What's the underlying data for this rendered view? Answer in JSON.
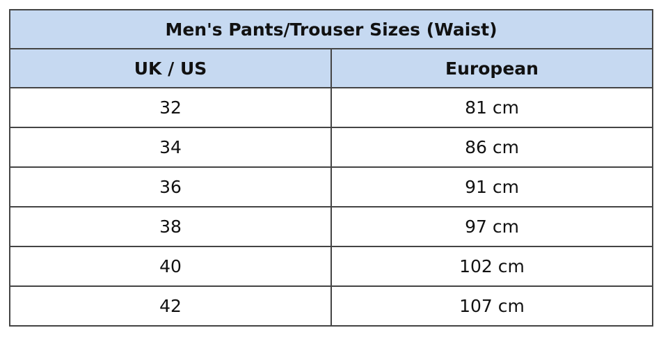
{
  "table": {
    "title": "Men's Pants/Trouser Sizes (Waist)",
    "columns": [
      "UK / US",
      "European"
    ],
    "rows": [
      [
        "32",
        "81 cm"
      ],
      [
        "34",
        "86 cm"
      ],
      [
        "36",
        "91 cm"
      ],
      [
        "38",
        "97 cm"
      ],
      [
        "40",
        "102 cm"
      ],
      [
        "42",
        "107 cm"
      ]
    ]
  }
}
